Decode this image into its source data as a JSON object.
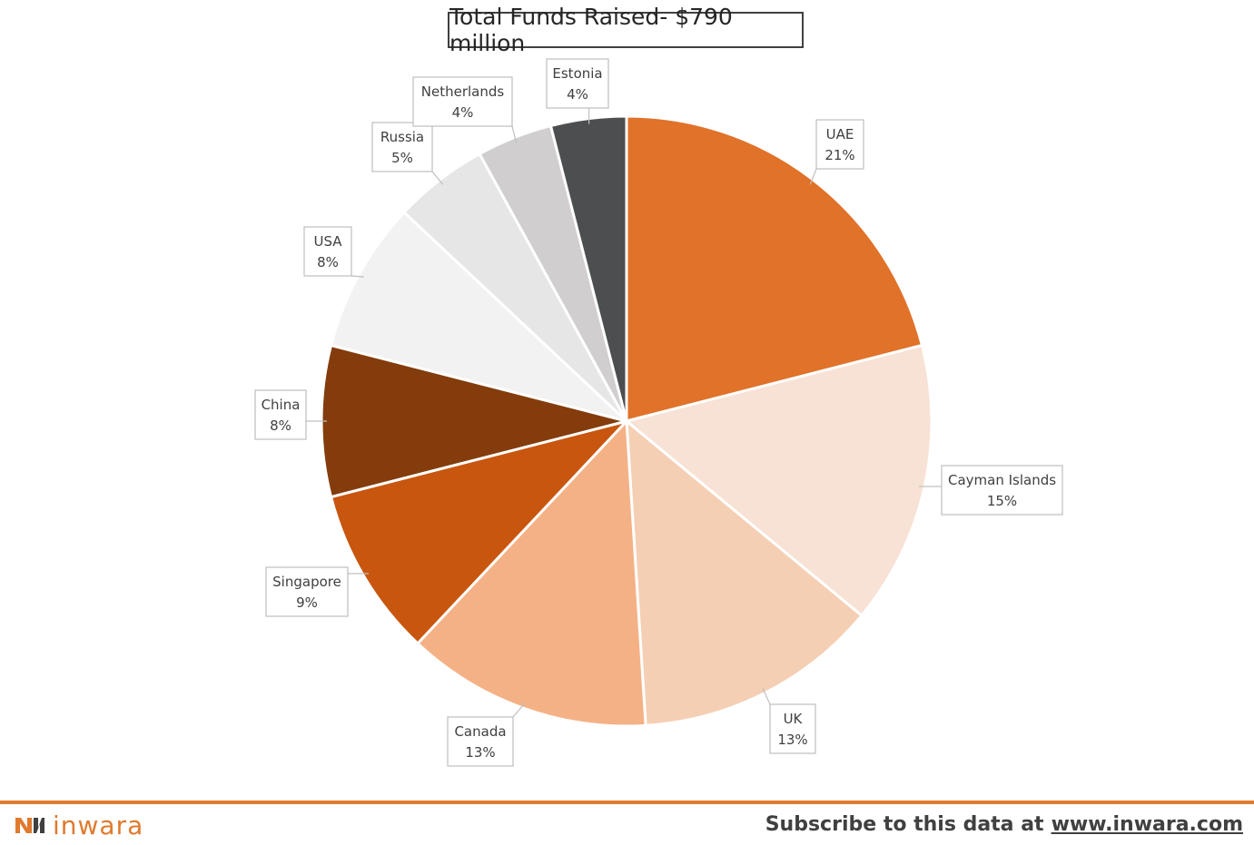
{
  "chart_data": {
    "type": "pie",
    "title": "Total Funds Raised- $790 million",
    "slices": [
      {
        "label": "UAE",
        "value": 21,
        "value_label": "21%",
        "color": "#E07229"
      },
      {
        "label": "Cayman Islands",
        "value": 15,
        "value_label": "15%",
        "color": "#F8E2D5"
      },
      {
        "label": "UK",
        "value": 13,
        "value_label": "13%",
        "color": "#F5CFB4"
      },
      {
        "label": "Canada",
        "value": 13,
        "value_label": "13%",
        "color": "#F4B185"
      },
      {
        "label": "Singapore",
        "value": 9,
        "value_label": "9%",
        "color": "#C8560F"
      },
      {
        "label": "China",
        "value": 8,
        "value_label": "8%",
        "color": "#843C0C"
      },
      {
        "label": "USA",
        "value": 8,
        "value_label": "8%",
        "color": "#F2F2F2"
      },
      {
        "label": "Russia",
        "value": 5,
        "value_label": "5%",
        "color": "#E7E6E6"
      },
      {
        "label": "Netherlands",
        "value": 4,
        "value_label": "4%",
        "color": "#D0CECE"
      },
      {
        "label": "Estonia",
        "value": 4,
        "value_label": "4%",
        "color": "#4D4E50"
      }
    ]
  },
  "footer": {
    "brand": "inwara",
    "subscribe_text": "Subscribe to this data at",
    "subscribe_link": "www.inwara.com"
  },
  "colors": {
    "accent": "#E07A2E",
    "text_dark": "#404040"
  }
}
